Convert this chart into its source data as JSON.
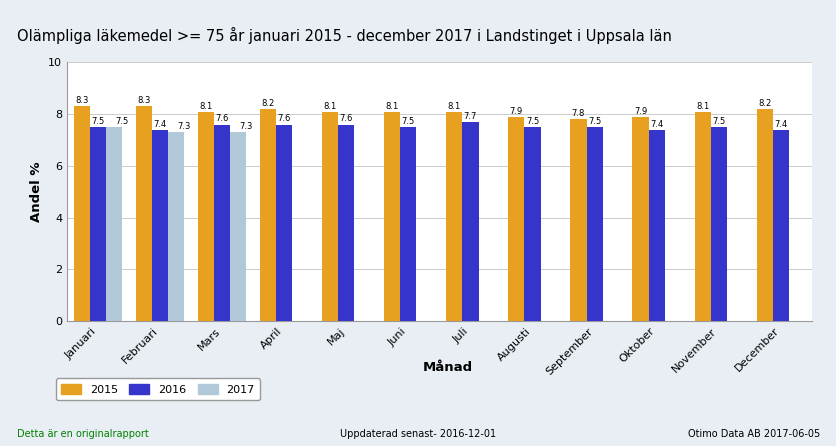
{
  "title": "Olämpliga läkemedel >= 75 år januari 2015 - december 2017 i Landstinget i Uppsala län",
  "xlabel": "Månad",
  "ylabel": "Andel %",
  "months": [
    "Januari",
    "Februari",
    "Mars",
    "April",
    "Maj",
    "Juni",
    "Juli",
    "Augusti",
    "September",
    "Oktober",
    "November",
    "December"
  ],
  "values_2015": [
    8.3,
    8.3,
    8.1,
    8.2,
    8.1,
    8.1,
    8.1,
    7.9,
    7.8,
    7.9,
    8.1,
    8.2
  ],
  "values_2016": [
    7.5,
    7.4,
    7.6,
    7.6,
    7.6,
    7.5,
    7.7,
    7.5,
    7.5,
    7.4,
    7.5,
    7.4
  ],
  "values_2017": [
    7.5,
    7.3,
    7.3,
    null,
    null,
    null,
    null,
    null,
    null,
    null,
    null,
    null
  ],
  "color_2015": "#E8A020",
  "color_2016": "#3535CC",
  "color_2017": "#B0C8D8",
  "ylim": [
    0,
    10
  ],
  "yticks": [
    0,
    2,
    4,
    6,
    8,
    10
  ],
  "legend_labels": [
    "2015",
    "2016",
    "2017"
  ],
  "footer_left": "Detta är en originalrapport",
  "footer_mid": "Uppdaterad senast- 2016-12-01",
  "footer_right": "Otimo Data AB 2017-06-05",
  "bg_color": "#E8EEF4",
  "plot_bg_color": "#FFFFFF",
  "border_color": "#999999",
  "title_fontsize": 10.5,
  "label_fontsize": 9.5,
  "tick_fontsize": 8,
  "bar_value_fontsize": 6
}
